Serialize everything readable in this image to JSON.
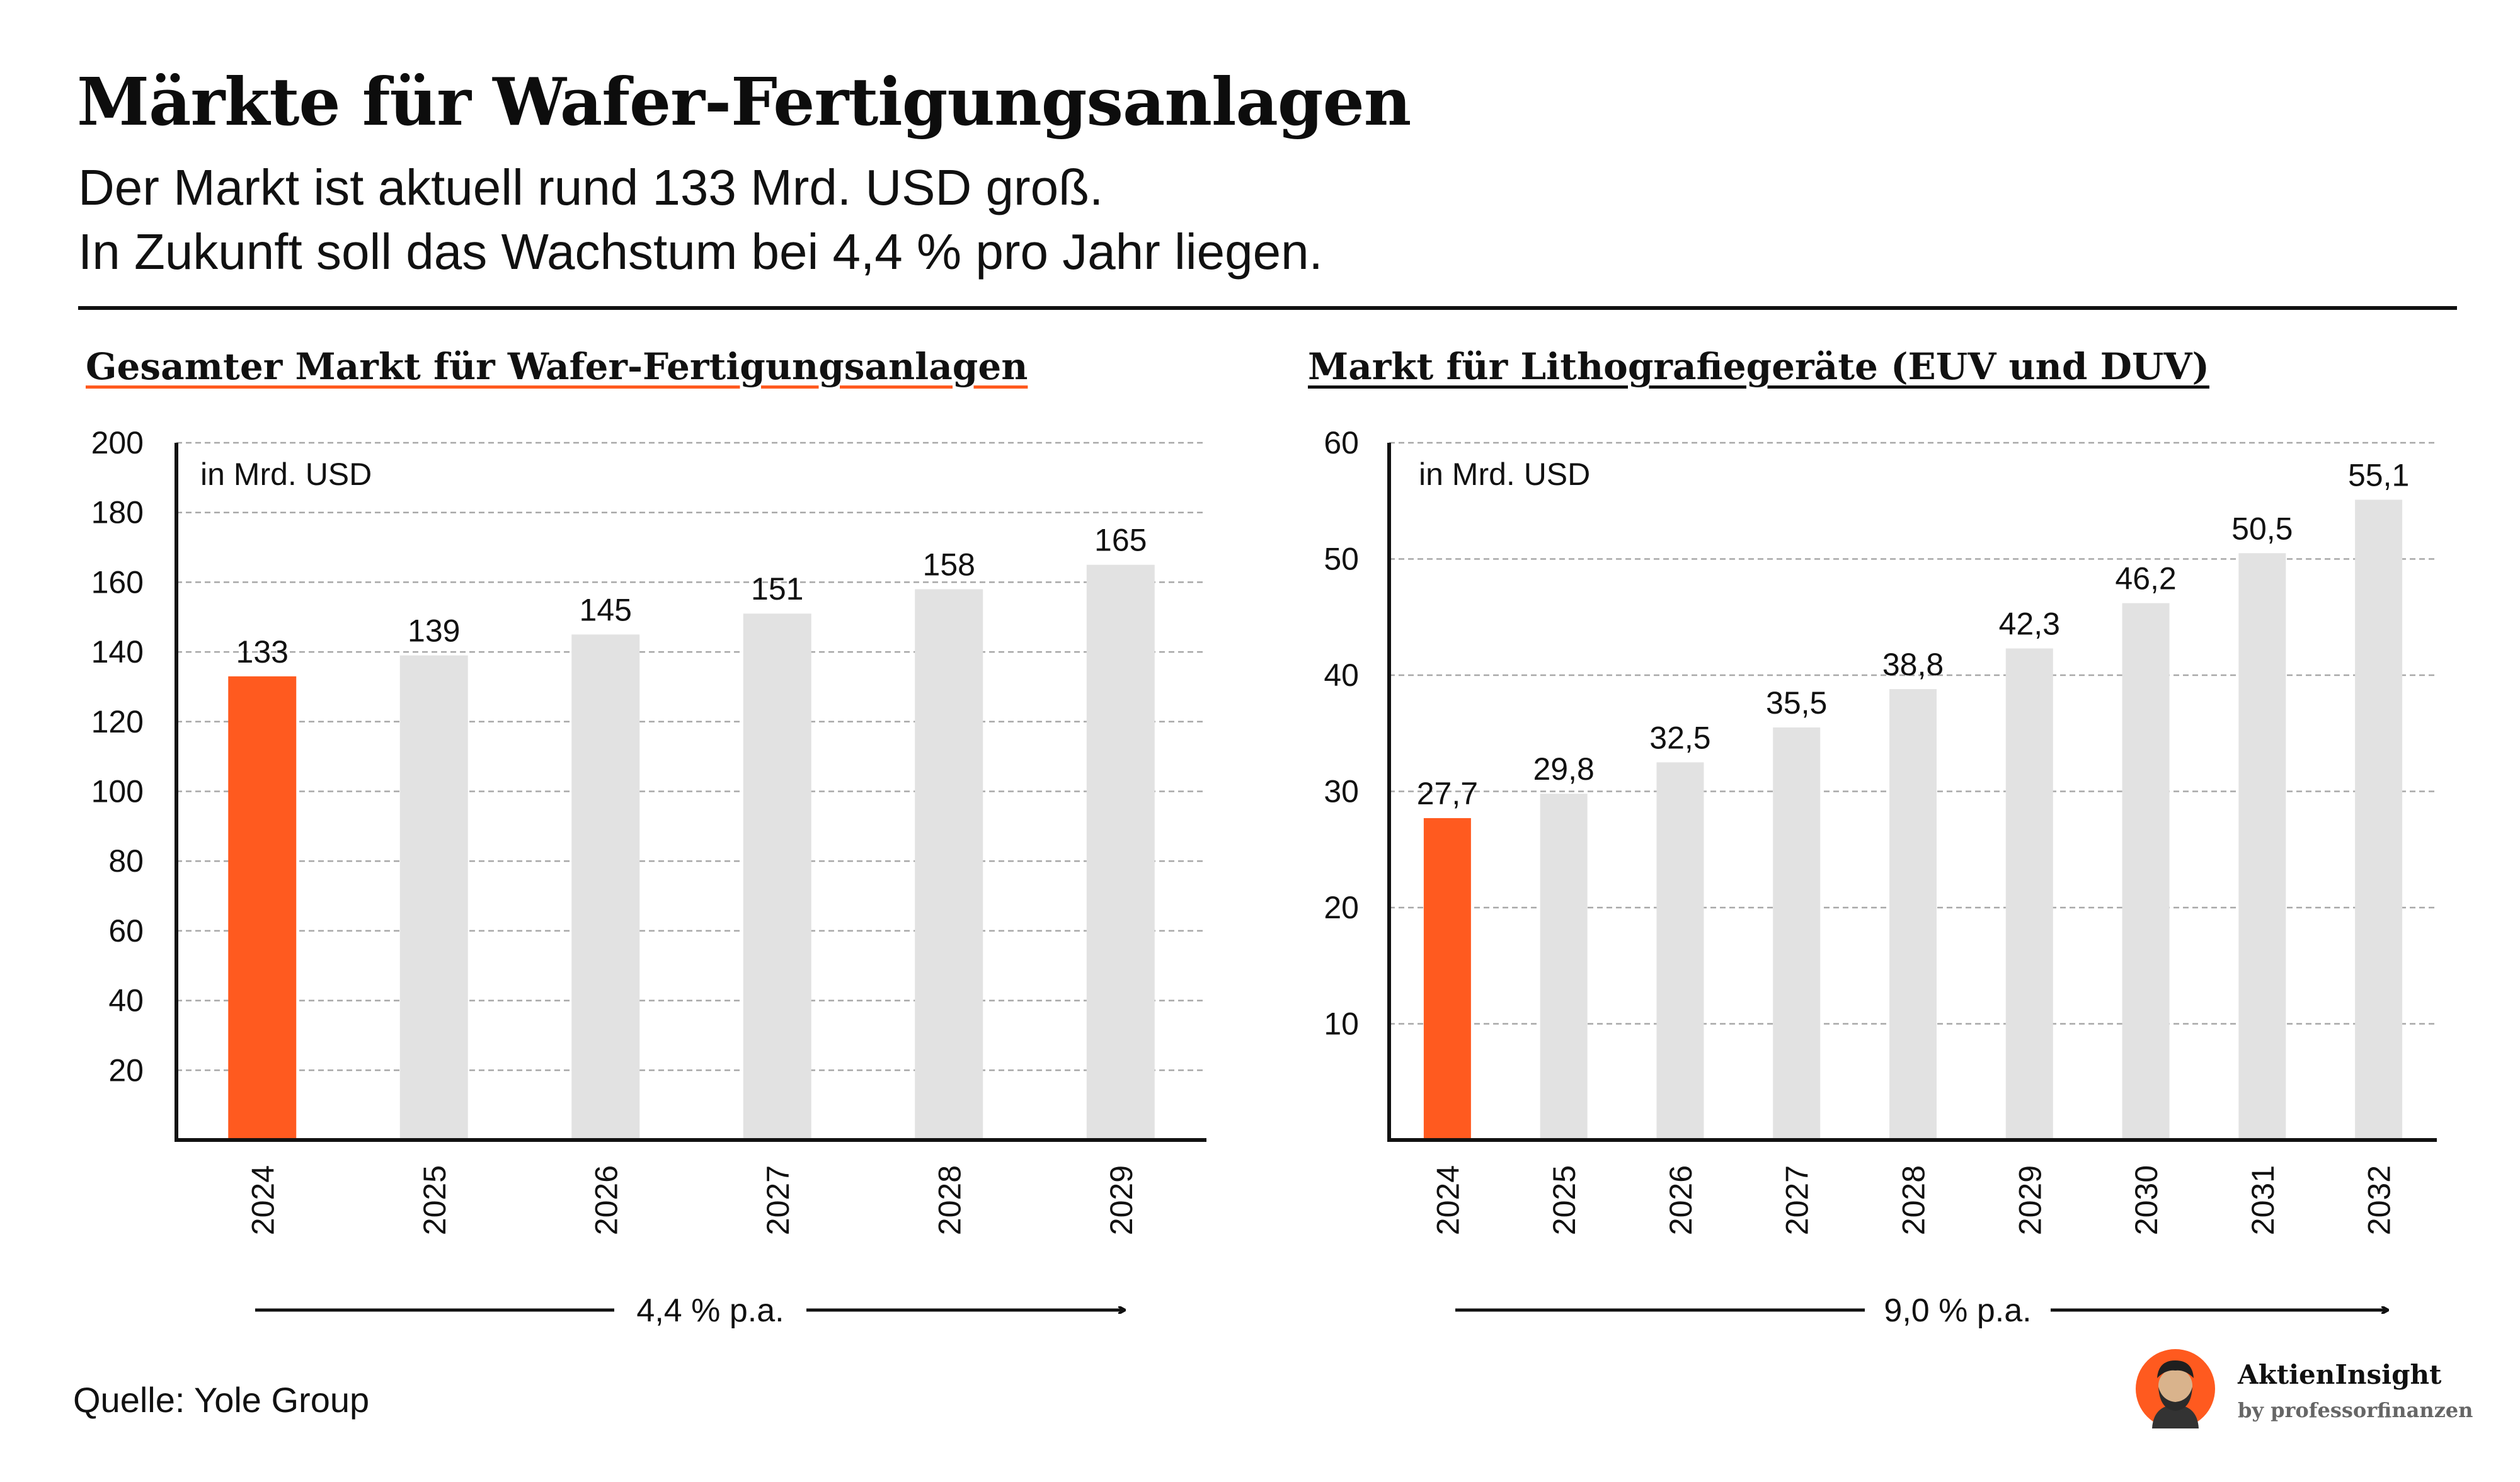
{
  "title": "Märkte für Wafer-Fertigungsanlagen",
  "subtitle_line1": "Der Markt ist aktuell rund 133 Mrd. USD groß.",
  "subtitle_line2": "In Zukunft soll das Wachstum bei 4,4 % pro Jahr liegen.",
  "source": "Quelle: Yole Group",
  "brand": {
    "name": "AktienInsight",
    "byline": "by professorfinanzen"
  },
  "colors": {
    "highlight": "#ff5a1f",
    "bar": "#e2e2e2",
    "axis": "#111111",
    "grid": "#a8a8a8"
  },
  "chart_data": [
    {
      "type": "bar",
      "title": "Gesamter Markt für Wafer-Fertigungsanlagen",
      "unit_label": "in Mrd. USD",
      "categories": [
        "2024",
        "2025",
        "2026",
        "2027",
        "2028",
        "2029"
      ],
      "values": [
        133,
        139,
        145,
        151,
        158,
        165
      ],
      "value_labels": [
        "133",
        "139",
        "145",
        "151",
        "158",
        "165"
      ],
      "yticks": [
        20,
        40,
        60,
        80,
        100,
        120,
        140,
        160,
        180,
        200
      ],
      "ylim": [
        0,
        200
      ],
      "highlight_index": 0,
      "growth_label": "4,4 % p.a.",
      "grid": true
    },
    {
      "type": "bar",
      "title": "Markt für Lithografiegeräte (EUV und DUV)",
      "unit_label": "in Mrd. USD",
      "categories": [
        "2024",
        "2025",
        "2026",
        "2027",
        "2028",
        "2029",
        "2030",
        "2031",
        "2032"
      ],
      "values": [
        27.7,
        29.8,
        32.5,
        35.5,
        38.8,
        42.3,
        46.2,
        50.5,
        55.1
      ],
      "value_labels": [
        "27,7",
        "29,8",
        "32,5",
        "35,5",
        "38,8",
        "42,3",
        "46,2",
        "50,5",
        "55,1"
      ],
      "yticks": [
        10,
        20,
        30,
        40,
        50,
        60
      ],
      "ylim": [
        0,
        60
      ],
      "highlight_index": 0,
      "growth_label": "9,0 % p.a.",
      "grid": true
    }
  ]
}
